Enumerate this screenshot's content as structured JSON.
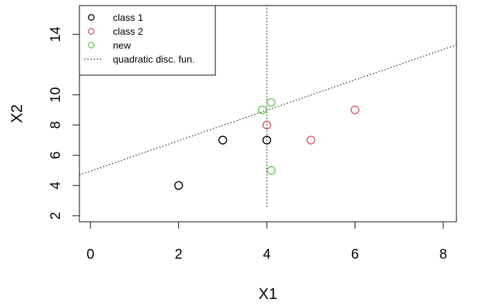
{
  "chart_data": {
    "type": "scatter",
    "xlabel": "X1",
    "ylabel": "X2",
    "xlim": [
      -0.25,
      8.3
    ],
    "ylim": [
      1.6,
      15.9
    ],
    "x_ticks": [
      0,
      2,
      4,
      6,
      8
    ],
    "y_ticks": [
      2,
      4,
      6,
      8,
      10,
      14
    ],
    "grid": false,
    "series": [
      {
        "name": "class 1",
        "color": "#000000",
        "points": [
          [
            2,
            4
          ],
          [
            3,
            7
          ],
          [
            4,
            7
          ]
        ]
      },
      {
        "name": "class 2",
        "color": "#DF536B",
        "points": [
          [
            4,
            8
          ],
          [
            5,
            7
          ],
          [
            6,
            9
          ]
        ]
      },
      {
        "name": "new",
        "color": "#61D04F",
        "points": [
          [
            3.9,
            9
          ],
          [
            4.1,
            9.5
          ],
          [
            4.1,
            5
          ]
        ]
      }
    ],
    "boundaries": [
      {
        "name": "quadratic disc. fun.",
        "style": "dotted",
        "color": "#000000",
        "line": {
          "x1": -0.25,
          "y1": 4.7,
          "x2": 8.3,
          "y2": 13.3
        }
      },
      {
        "style": "dotted",
        "color": "#000000",
        "line": {
          "x1": 4,
          "y1": 2.6,
          "x2": 4,
          "y2": 15.9
        }
      }
    ],
    "legend": {
      "position": "top-left",
      "entries": [
        {
          "label": "class 1",
          "symbol": "circle",
          "color": "#000000"
        },
        {
          "label": "class 2",
          "symbol": "circle",
          "color": "#DF536B"
        },
        {
          "label": "new",
          "symbol": "circle",
          "color": "#61D04F"
        },
        {
          "label": "quadratic disc. fun.",
          "symbol": "dotted-line",
          "color": "#000000"
        }
      ]
    }
  }
}
